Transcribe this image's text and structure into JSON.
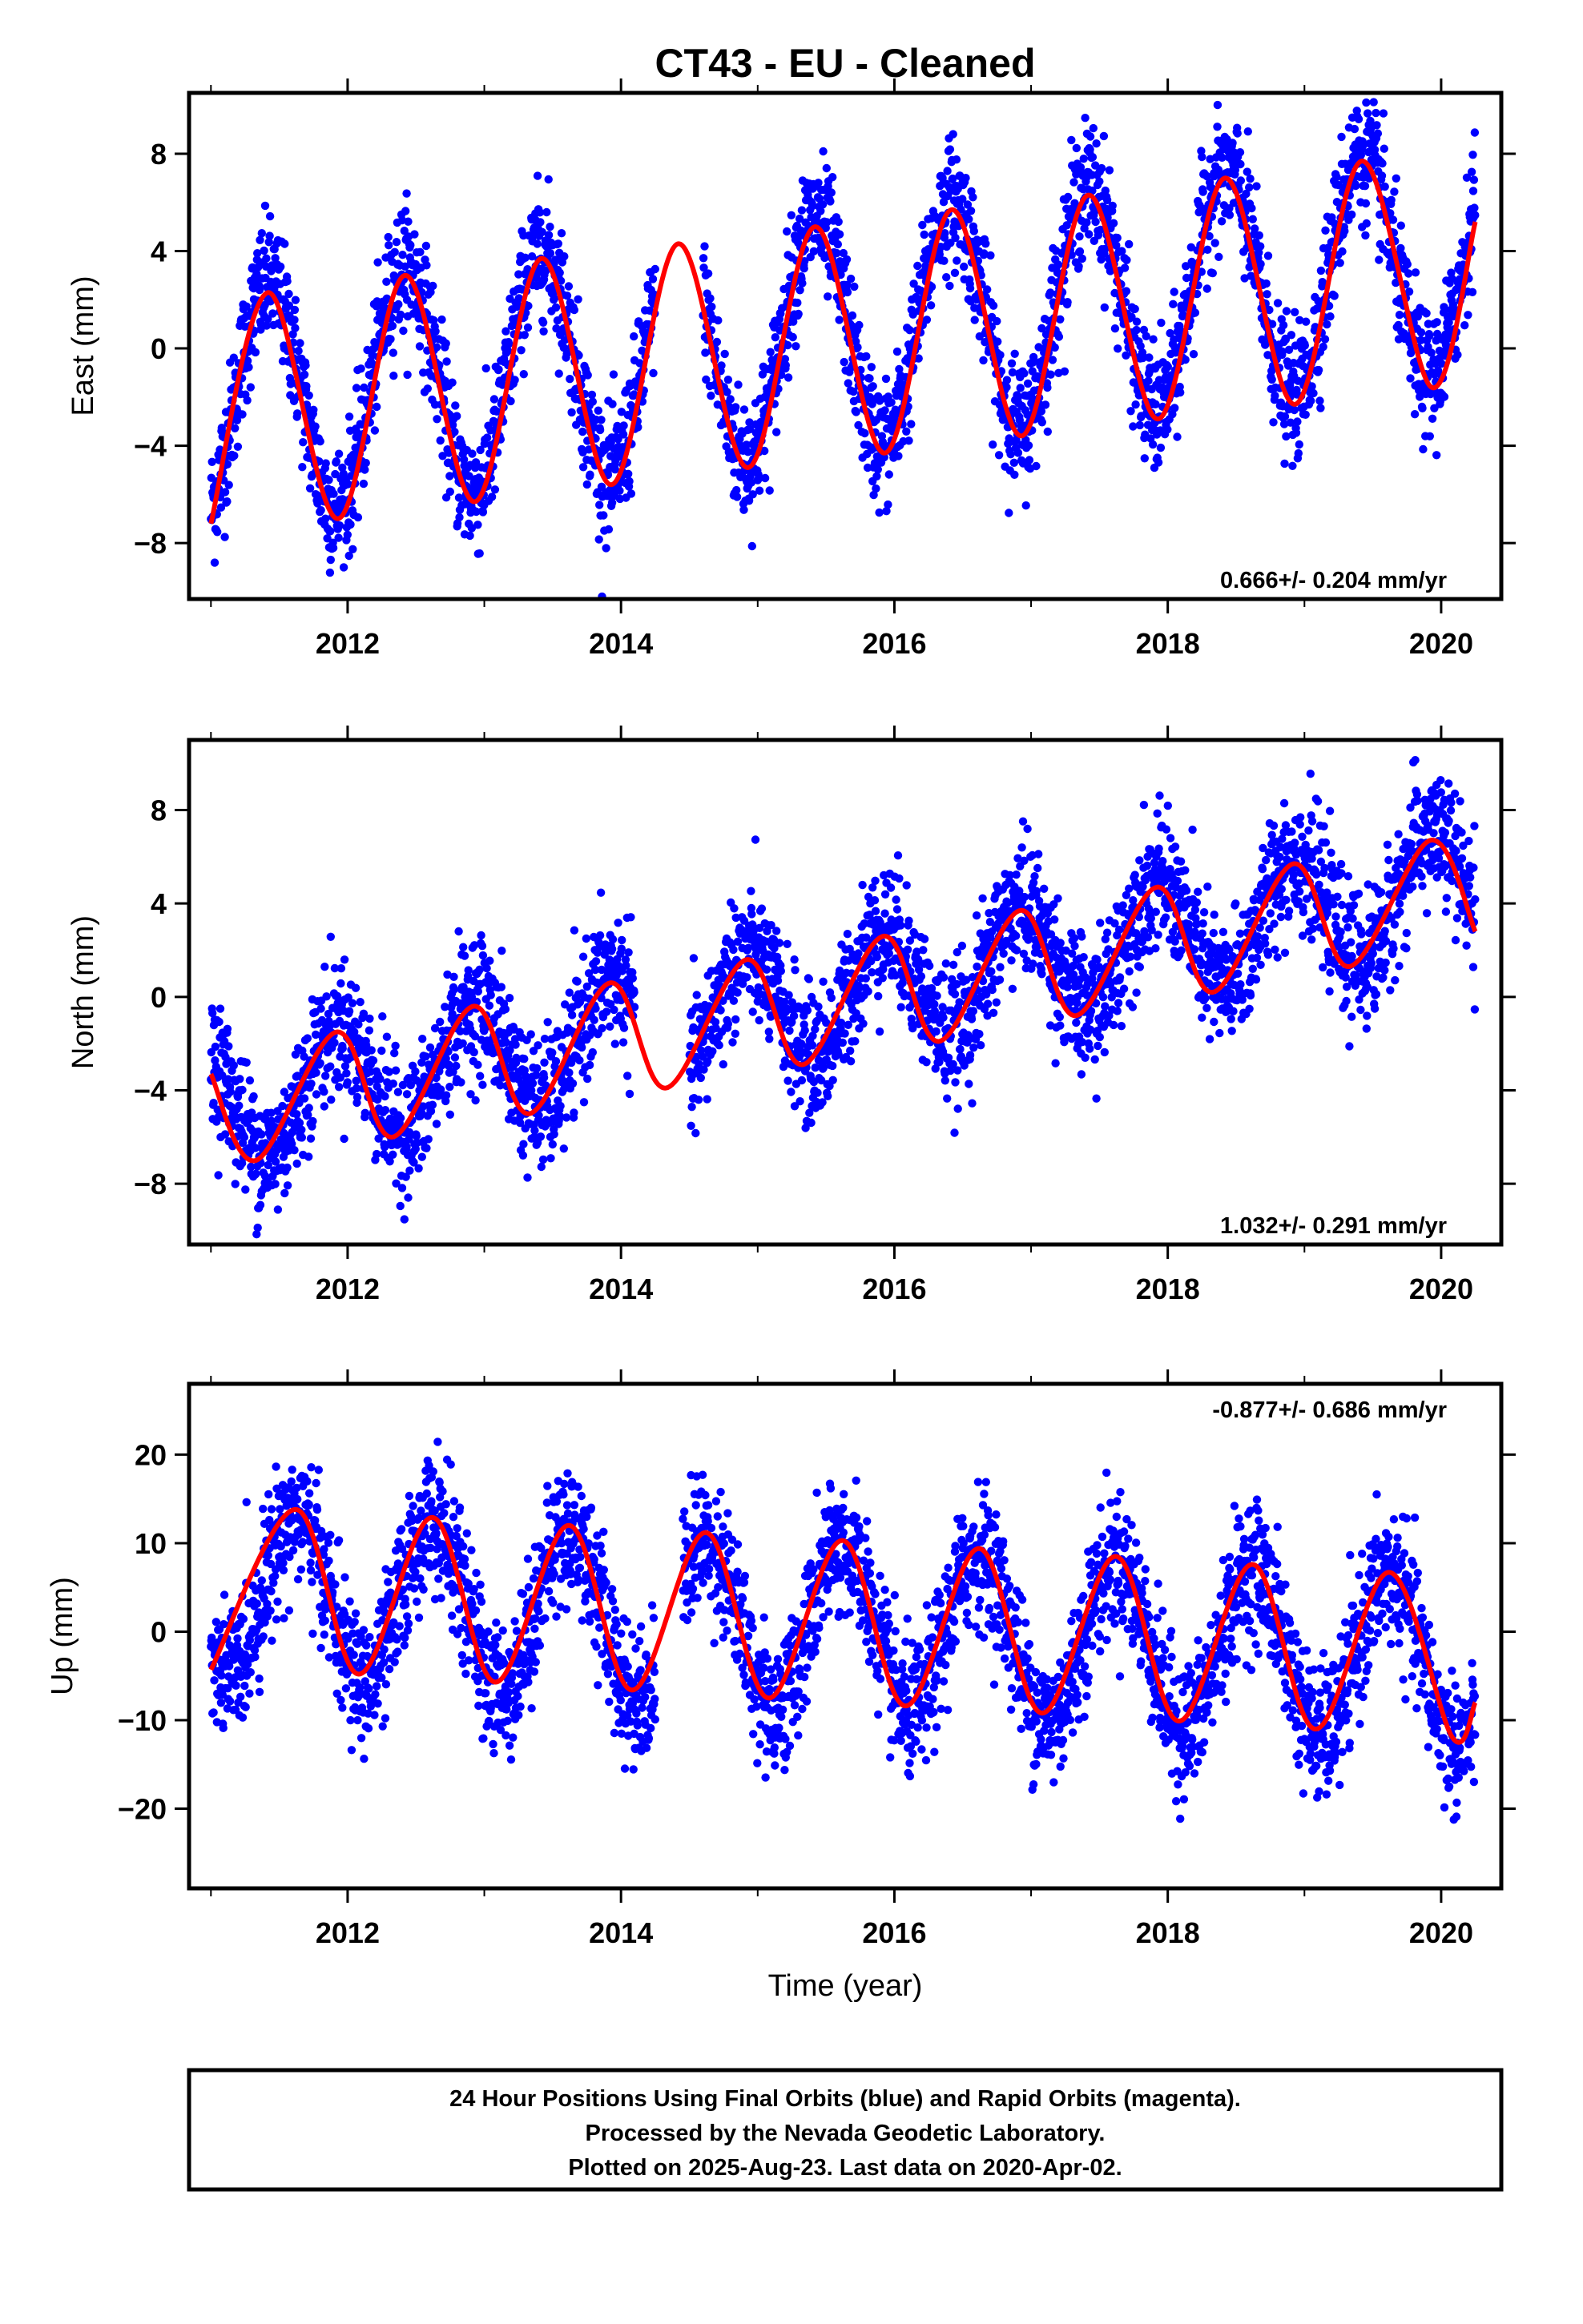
{
  "title": "CT43  - EU - Cleaned",
  "colors": {
    "points": "#0000ff",
    "fit": "#ff0000",
    "frame": "#000000"
  },
  "xlabel": "Time (year)",
  "note_lines": [
    "24 Hour Positions Using Final Orbits (blue) and Rapid Orbits (magenta).",
    "Processed by the Nevada Geodetic Laboratory.",
    "Plotted on 2025-Aug-23. Last data on 2020-Apr-02."
  ],
  "chart_data": [
    {
      "type": "scatter",
      "component": "east",
      "ylabel": "East (mm)",
      "rate_label": "0.666+/- 0.204 mm/yr",
      "xlim": [
        2010.84,
        2020.44
      ],
      "ylim": [
        -10.3,
        10.5
      ],
      "x_ticks": [
        "2012",
        "2014",
        "2016",
        "2018",
        "2020"
      ],
      "y_ticks": [
        "8",
        "4",
        "0",
        "−4",
        "−8"
      ],
      "data_start": 2011.0,
      "data_end": 2020.25,
      "trend_at_2011": -2.4,
      "rate_mm_per_yr": 0.666,
      "seasonal_amplitude_mm": 4.8,
      "peak_phase_year_fraction": 0.42,
      "scatter_mm": 1.3,
      "fit_points": [
        {
          "x": 2011.0,
          "y": -7.2
        },
        {
          "x": 2011.42,
          "y": 2.3
        },
        {
          "x": 2011.93,
          "y": -7.0
        },
        {
          "x": 2012.42,
          "y": 3.0
        },
        {
          "x": 2012.93,
          "y": -6.3
        },
        {
          "x": 2013.42,
          "y": 3.7
        },
        {
          "x": 2013.93,
          "y": -5.6
        },
        {
          "x": 2014.42,
          "y": 4.3
        },
        {
          "x": 2014.93,
          "y": -4.9
        },
        {
          "x": 2015.42,
          "y": 5.0
        },
        {
          "x": 2015.93,
          "y": -4.3
        },
        {
          "x": 2016.42,
          "y": 5.7
        },
        {
          "x": 2016.93,
          "y": -3.6
        },
        {
          "x": 2017.42,
          "y": 6.3
        },
        {
          "x": 2017.93,
          "y": -2.9
        },
        {
          "x": 2018.42,
          "y": 7.0
        },
        {
          "x": 2018.93,
          "y": -2.3
        },
        {
          "x": 2019.42,
          "y": 7.7
        },
        {
          "x": 2019.93,
          "y": -1.6
        },
        {
          "x": 2020.25,
          "y": 5.2
        }
      ],
      "gaps": [
        [
          2014.25,
          2014.6
        ]
      ]
    },
    {
      "type": "scatter",
      "component": "north",
      "ylabel": "North (mm)",
      "rate_label": "1.032+/- 0.291 mm/yr",
      "xlim": [
        2010.84,
        2020.44
      ],
      "ylim": [
        -10.6,
        11.0
      ],
      "x_ticks": [
        "2012",
        "2014",
        "2016",
        "2018",
        "2020"
      ],
      "y_ticks": [
        "8",
        "4",
        "0",
        "−4",
        "−8"
      ],
      "data_start": 2011.0,
      "data_end": 2020.25,
      "trend_at_2011": -4.7,
      "rate_mm_per_yr": 1.032,
      "seasonal_amplitude_mm": 2.5,
      "peak_phase_year_fraction": 0.92,
      "scatter_mm": 1.4,
      "fit_points": [
        {
          "x": 2011.0,
          "y": -3.3
        },
        {
          "x": 2011.33,
          "y": -7.0
        },
        {
          "x": 2011.92,
          "y": -1.5
        },
        {
          "x": 2012.33,
          "y": -6.0
        },
        {
          "x": 2012.92,
          "y": -0.4
        },
        {
          "x": 2013.33,
          "y": -5.0
        },
        {
          "x": 2013.92,
          "y": 0.6
        },
        {
          "x": 2014.33,
          "y": -3.9
        },
        {
          "x": 2014.92,
          "y": 1.6
        },
        {
          "x": 2015.33,
          "y": -2.9
        },
        {
          "x": 2015.92,
          "y": 2.6
        },
        {
          "x": 2016.33,
          "y": -1.9
        },
        {
          "x": 2016.92,
          "y": 3.7
        },
        {
          "x": 2017.33,
          "y": -0.8
        },
        {
          "x": 2017.92,
          "y": 4.7
        },
        {
          "x": 2018.33,
          "y": 0.2
        },
        {
          "x": 2018.92,
          "y": 5.7
        },
        {
          "x": 2019.33,
          "y": 1.3
        },
        {
          "x": 2019.92,
          "y": 6.7
        },
        {
          "x": 2020.25,
          "y": 2.8
        }
      ],
      "gaps": [
        [
          2014.1,
          2014.5
        ]
      ]
    },
    {
      "type": "scatter",
      "component": "up",
      "ylabel": "Up (mm)",
      "rate_label": "-0.877+/- 0.686 mm/yr",
      "xlim": [
        2010.84,
        2020.44
      ],
      "ylim": [
        -29.0,
        28.0
      ],
      "x_ticks": [
        "2012",
        "2014",
        "2016",
        "2018",
        "2020"
      ],
      "y_ticks": [
        "20",
        "10",
        "0",
        "−10",
        "−20"
      ],
      "xlabel": "Time (year)",
      "data_start": 2011.0,
      "data_end": 2020.25,
      "trend_at_2011": 4.5,
      "rate_mm_per_yr": -0.877,
      "seasonal_amplitude_mm": 9.3,
      "peak_phase_year_fraction": 0.62,
      "scatter_mm": 3.8,
      "fit_points": [
        {
          "x": 2011.0,
          "y": -4.3
        },
        {
          "x": 2011.62,
          "y": 13.8
        },
        {
          "x": 2012.08,
          "y": -4.8
        },
        {
          "x": 2012.62,
          "y": 12.9
        },
        {
          "x": 2013.08,
          "y": -5.7
        },
        {
          "x": 2013.62,
          "y": 12.0
        },
        {
          "x": 2014.08,
          "y": -6.6
        },
        {
          "x": 2014.62,
          "y": 11.2
        },
        {
          "x": 2015.08,
          "y": -7.5
        },
        {
          "x": 2015.62,
          "y": 10.3
        },
        {
          "x": 2016.08,
          "y": -8.4
        },
        {
          "x": 2016.62,
          "y": 9.4
        },
        {
          "x": 2017.08,
          "y": -9.2
        },
        {
          "x": 2017.62,
          "y": 8.5
        },
        {
          "x": 2018.08,
          "y": -10.1
        },
        {
          "x": 2018.62,
          "y": 7.6
        },
        {
          "x": 2019.08,
          "y": -11.0
        },
        {
          "x": 2019.62,
          "y": 6.7
        },
        {
          "x": 2020.08,
          "y": -11.9
        },
        {
          "x": 2020.25,
          "y": -8.0
        }
      ],
      "gaps": [
        [
          2014.25,
          2014.45
        ]
      ]
    }
  ]
}
